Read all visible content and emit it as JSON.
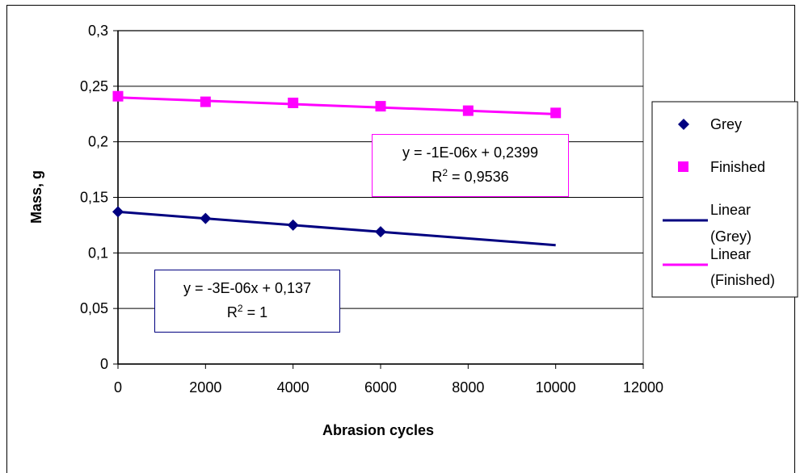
{
  "chart_data": {
    "type": "scatter",
    "xlabel": "Abrasion cycles",
    "ylabel": "Mass, g",
    "xlim": [
      0,
      12000
    ],
    "ylim": [
      0,
      0.3
    ],
    "x_ticks": [
      0,
      2000,
      4000,
      6000,
      8000,
      10000,
      12000
    ],
    "x_tick_labels": [
      "0",
      "2000",
      "4000",
      "6000",
      "8000",
      "10000",
      "12000"
    ],
    "y_ticks": [
      0,
      0.05,
      0.1,
      0.15,
      0.2,
      0.25,
      0.3
    ],
    "y_tick_labels": [
      "0",
      "0,05",
      "0,1",
      "0,15",
      "0,2",
      "0,25",
      "0,3"
    ],
    "grid": "horizontal",
    "legend_position": "right",
    "series": [
      {
        "name": "Grey",
        "color": "#000080",
        "marker": "diamond",
        "x": [
          0,
          2000,
          4000,
          6000
        ],
        "y": [
          0.137,
          0.131,
          0.125,
          0.119
        ]
      },
      {
        "name": "Finished",
        "color": "#FF00FF",
        "marker": "square",
        "x": [
          0,
          2000,
          4000,
          6000,
          8000,
          10000
        ],
        "y": [
          0.241,
          0.236,
          0.235,
          0.232,
          0.228,
          0.226
        ]
      }
    ],
    "trendlines": [
      {
        "name_line1": "Linear",
        "name_line2": "(Grey)",
        "color": "#000080",
        "x_range": [
          0,
          10000
        ],
        "slope": -3e-06,
        "intercept": 0.137,
        "equation": "y = -3E-06x + 0,137",
        "r2_prefix": "R",
        "r2_sup": "2",
        "r2_suffix": " = 1"
      },
      {
        "name_line1": "Linear",
        "name_line2": "(Finished)",
        "color": "#FF00FF",
        "x_range": [
          0,
          10000
        ],
        "slope": -1.5e-06,
        "intercept": 0.2399,
        "equation": "y = -1E-06x + 0,2399",
        "r2_prefix": "R",
        "r2_sup": "2",
        "r2_suffix": " = 0,9536"
      }
    ]
  }
}
